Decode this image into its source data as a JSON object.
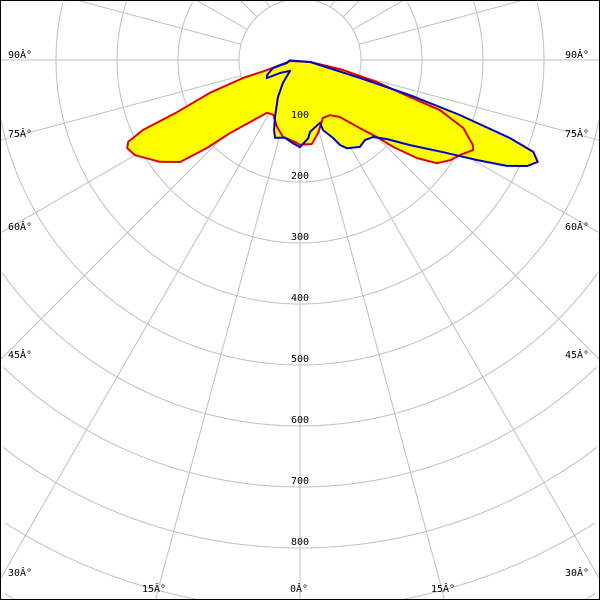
{
  "chart_data": {
    "type": "polar",
    "angle_convention": "0 degrees points down, positive angles to the right",
    "radial_ticks": [
      100,
      200,
      300,
      400,
      500,
      600,
      700,
      800
    ],
    "radial_labels": [
      "100",
      "200",
      "300",
      "400",
      "500",
      "600",
      "700",
      "800"
    ],
    "radial_max": 1000,
    "angle_grid_step": 15,
    "angle_labels": {
      "left": [
        "90Â°",
        "75Â°",
        "60Â°",
        "45Â°",
        "30Â°"
      ],
      "right": [
        "90Â°",
        "75Â°",
        "60Â°",
        "45Â°",
        "30Â°"
      ],
      "bottom": [
        "15Â°",
        "0Â°",
        "15Â°"
      ]
    },
    "grid": true,
    "colors": {
      "grid": "#c0c0c0",
      "fill": "#ffff00",
      "series_1": "#e00000",
      "series_2": "#0000c8"
    },
    "series": [
      {
        "points": [
          [
            -84,
            16
          ],
          [
            -73,
            57
          ],
          [
            -72.5,
            98
          ],
          [
            -70,
            157
          ],
          [
            -67,
            219
          ],
          [
            -66,
            282
          ],
          [
            -64.5,
            312
          ],
          [
            -63,
            318
          ],
          [
            -60,
            312
          ],
          [
            -54,
            284
          ],
          [
            -49.6,
            258
          ],
          [
            -46.6,
            210
          ],
          [
            -43.8,
            166
          ],
          [
            -38.9,
            131
          ],
          [
            -31.9,
            102
          ],
          [
            -26,
            100
          ],
          [
            -19,
            116
          ],
          [
            -12.5,
            129
          ],
          [
            -2,
            136
          ],
          [
            0,
            139
          ],
          [
            8,
            139
          ],
          [
            14,
            123
          ],
          [
            21.6,
            102
          ],
          [
            28.6,
            103
          ],
          [
            35,
            114
          ],
          [
            41.4,
            149
          ],
          [
            45,
            179
          ],
          [
            47,
            209
          ],
          [
            50,
            250
          ],
          [
            53,
            281
          ],
          [
            56.3,
            296
          ],
          [
            60,
            308
          ],
          [
            62.5,
            320
          ],
          [
            63.8,
            316
          ],
          [
            67.4,
            290
          ],
          [
            70.3,
            244
          ],
          [
            71.4,
            190
          ],
          [
            74,
            131
          ],
          [
            77,
            72
          ],
          [
            79,
            17
          ]
        ]
      },
      {
        "points": [
          [
            79,
            17
          ],
          [
            73.3,
            103
          ],
          [
            72.3,
            189
          ],
          [
            71,
            277
          ],
          [
            69.6,
            367
          ],
          [
            68.5,
            411
          ],
          [
            66.8,
            424
          ],
          [
            65,
            411
          ],
          [
            62.9,
            381
          ],
          [
            60.5,
            333
          ],
          [
            57.2,
            279
          ],
          [
            52.3,
            228
          ],
          [
            47.8,
            193
          ],
          [
            43.5,
            174
          ],
          [
            39,
            169
          ],
          [
            34.6,
            173
          ],
          [
            28,
            164
          ],
          [
            25.2,
            154
          ],
          [
            23,
            139
          ],
          [
            18.2,
            121
          ],
          [
            17.6,
            108
          ],
          [
            12.6,
            113
          ],
          [
            8,
            119
          ],
          [
            6,
            129
          ],
          [
            0,
            143
          ],
          [
            -4.8,
            137
          ],
          [
            -11,
            130
          ],
          [
            -17.8,
            134
          ],
          [
            -20.4,
            122
          ],
          [
            -23.7,
            102
          ],
          [
            -30.7,
            71
          ],
          [
            -36.5,
            47
          ],
          [
            -42.3,
            24
          ],
          [
            -57,
            39
          ],
          [
            -61.4,
            62
          ],
          [
            -65.6,
            59
          ],
          [
            -73.5,
            46
          ],
          [
            -77,
            22
          ],
          [
            -88,
            17
          ]
        ]
      }
    ]
  }
}
